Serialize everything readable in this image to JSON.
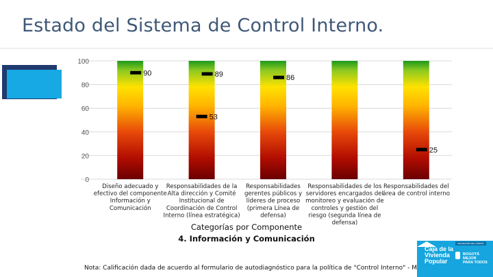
{
  "page": {
    "title": "Estado del Sistema de Control Interno.",
    "note": "Nota: Calificación dada de acuerdo al formulario de autodiagnóstico para la política de \"Control Interno\" - MIPG"
  },
  "chart_data": {
    "type": "bar",
    "title": "",
    "xlabel": "Categorías por Componente",
    "xlabel_sub": "4. Información y Comunicación",
    "ylabel": "",
    "ylim": [
      0,
      100
    ],
    "yticks": [
      0,
      20,
      40,
      60,
      80,
      100
    ],
    "grid": true,
    "bar_fill": "gradient red (low) to yellow to green (high)",
    "marker_color": "#000000",
    "categories": [
      [
        "Diseño adecuado y",
        "efectivo del componente",
        "Información y",
        "Comunicación"
      ],
      [
        "Responsabilidades de la",
        "Alta dirección y Comité",
        "Institucional de",
        "Coordinación de Control",
        "Interno (línea estratégica)"
      ],
      [
        "Responsabilidades",
        "gerentes públicos y",
        "líderes de proceso",
        "(primera Línea de",
        "defensa)"
      ],
      [
        "Responsabilidades de los",
        "servidores encargados del",
        "monitoreo y evaluación de",
        "controles y gestión del",
        "riesgo (segunda línea de",
        "defensa)"
      ],
      [
        "Responsabilidades del",
        "área de control interno"
      ]
    ],
    "values": [
      90,
      89,
      86,
      53,
      25
    ],
    "value_marker_categories": [
      0,
      1,
      2,
      1,
      4
    ]
  },
  "colors": {
    "title": "#3f5878",
    "gradient_top": "#1c9a1c",
    "gradient_mid": "#ffd400",
    "gradient_low": "#e52a0c",
    "gradient_bottom": "#6a0000",
    "logo_blue": "#16a5de",
    "deco_dark": "#1f3a6e",
    "deco_light": "#17a9e4"
  },
  "logo": {
    "tag": "SECRETARÍA DEL HÁBITAT",
    "lines": [
      "Caja de la",
      "Vivienda",
      "Popular"
    ],
    "city": [
      "BOGOTÁ",
      "MEJOR",
      "PARA TODOS"
    ]
  }
}
